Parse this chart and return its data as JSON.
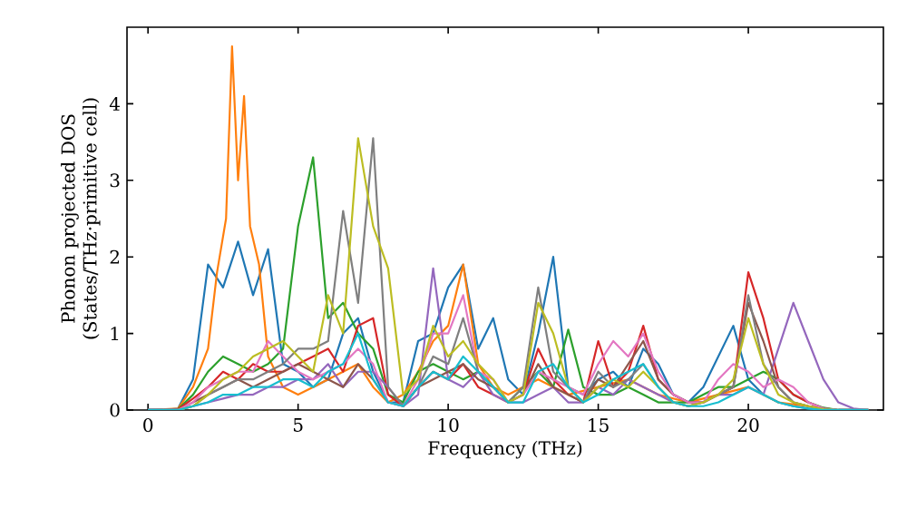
{
  "chart_data": {
    "type": "line",
    "xlabel": "Frequency (THz)",
    "ylabel": "Phonon projected DOS (States/THz·primitive cell)",
    "xlim": [
      -0.7,
      24.5
    ],
    "ylim": [
      0,
      5
    ],
    "xticks": [
      0,
      5,
      10,
      15,
      20
    ],
    "yticks": [
      0,
      1,
      2,
      3,
      4
    ],
    "line_style": "solid",
    "x": [
      0,
      0.5,
      1,
      1.5,
      2,
      2.5,
      3,
      3.5,
      4,
      4.5,
      5,
      5.5,
      6,
      6.5,
      7,
      7.5,
      8,
      8.5,
      9,
      9.5,
      10,
      10.5,
      11,
      11.5,
      12,
      12.5,
      13,
      13.5,
      14,
      14.5,
      15,
      15.5,
      16,
      16.5,
      17,
      17.5,
      18,
      18.5,
      19,
      19.5,
      20,
      20.5,
      21,
      21.5,
      22,
      22.5,
      23,
      23.5,
      24
    ],
    "series": [
      {
        "color": "#1f77b4",
        "values": [
          0,
          0,
          0.02,
          0.4,
          1.9,
          1.6,
          2.2,
          1.5,
          2.1,
          0.6,
          0.5,
          0.3,
          0.4,
          1.0,
          1.2,
          0.5,
          0.1,
          0.1,
          0.9,
          1.0,
          1.6,
          1.9,
          0.8,
          1.2,
          0.4,
          0.2,
          1.0,
          2.0,
          0.3,
          0.2,
          0.4,
          0.5,
          0.3,
          0.8,
          0.6,
          0.2,
          0.1,
          0.3,
          0.7,
          1.1,
          0.4,
          0.2,
          0.1,
          0.05,
          0.02,
          0,
          null,
          null,
          null
        ]
      },
      {
        "color": "#ff7f0e",
        "x": [
          0,
          1,
          1.5,
          2,
          2.3,
          2.6,
          2.8,
          3.0,
          3.2,
          3.4,
          3.7,
          4,
          4.5,
          5,
          5.5,
          6,
          6.5,
          7,
          7.5,
          8,
          8.5,
          9,
          9.5,
          10,
          10.5,
          11,
          11.5,
          12,
          13,
          14,
          15,
          16,
          17,
          18,
          19,
          20,
          20.5,
          21,
          22,
          23,
          24
        ],
        "values": [
          0,
          0.02,
          0.3,
          0.8,
          1.8,
          2.5,
          4.75,
          3.0,
          4.1,
          2.4,
          1.9,
          0.7,
          0.3,
          0.2,
          0.3,
          0.4,
          0.5,
          0.6,
          0.3,
          0.1,
          0.2,
          0.5,
          0.9,
          1.1,
          1.9,
          0.6,
          0.3,
          0.2,
          0.4,
          0.2,
          0.3,
          0.4,
          0.2,
          0.1,
          0.2,
          0.3,
          0.2,
          0.1,
          0.05,
          0,
          0
        ]
      },
      {
        "color": "#2ca02c",
        "values": [
          0,
          0,
          0.01,
          0.2,
          0.5,
          0.7,
          0.6,
          0.5,
          0.6,
          0.8,
          2.4,
          3.3,
          1.2,
          1.4,
          1.0,
          0.8,
          0.2,
          0.1,
          0.5,
          0.6,
          0.5,
          0.4,
          0.5,
          0.3,
          0.1,
          0.3,
          0.5,
          0.3,
          1.05,
          0.3,
          0.2,
          0.2,
          0.3,
          0.2,
          0.1,
          0.1,
          0.1,
          0.2,
          0.3,
          0.3,
          0.4,
          0.5,
          0.4,
          0.2,
          0.1,
          0.03,
          0,
          0,
          0
        ]
      },
      {
        "color": "#d62728",
        "values": [
          0,
          0,
          0.01,
          0.15,
          0.3,
          0.5,
          0.4,
          0.6,
          0.5,
          0.5,
          0.6,
          0.7,
          0.8,
          0.5,
          1.1,
          1.2,
          0.2,
          0.05,
          0.3,
          0.5,
          0.4,
          0.6,
          0.3,
          0.2,
          0.1,
          0.2,
          0.8,
          0.4,
          0.2,
          0.1,
          0.9,
          0.3,
          0.5,
          1.1,
          0.4,
          0.2,
          0.1,
          0.1,
          0.2,
          0.3,
          1.8,
          1.2,
          0.4,
          0.2,
          0.1,
          0.02,
          0,
          null,
          null
        ]
      },
      {
        "color": "#9467bd",
        "values": [
          0,
          0,
          0,
          0.05,
          0.1,
          0.15,
          0.2,
          0.2,
          0.3,
          0.3,
          0.4,
          0.4,
          0.6,
          0.3,
          0.5,
          0.5,
          0.3,
          0.05,
          0.2,
          1.85,
          0.4,
          0.3,
          0.5,
          0.2,
          0.1,
          0.1,
          0.2,
          0.3,
          0.1,
          0.1,
          0.3,
          0.2,
          0.4,
          0.3,
          0.2,
          0.1,
          0.05,
          0.1,
          0.2,
          0.2,
          0.3,
          0.2,
          0.8,
          1.4,
          0.9,
          0.4,
          0.1,
          0.02,
          0
        ]
      },
      {
        "color": "#8c564b",
        "values": [
          0,
          0,
          0,
          0.1,
          0.2,
          0.3,
          0.4,
          0.3,
          0.4,
          0.5,
          0.6,
          0.5,
          0.4,
          0.3,
          0.6,
          0.4,
          0.1,
          0.05,
          0.3,
          0.4,
          0.5,
          0.6,
          0.4,
          0.3,
          0.1,
          0.2,
          0.6,
          0.3,
          0.2,
          0.1,
          0.4,
          0.3,
          0.6,
          0.9,
          0.4,
          0.2,
          0.1,
          0.1,
          0.2,
          0.3,
          1.4,
          0.9,
          0.3,
          0.1,
          0.05,
          0.01,
          0,
          0,
          0
        ]
      },
      {
        "color": "#e377c2",
        "values": [
          0,
          0,
          0,
          0.1,
          0.3,
          0.4,
          0.5,
          0.5,
          0.9,
          0.7,
          0.5,
          0.4,
          0.5,
          0.6,
          0.8,
          0.6,
          0.1,
          0.05,
          0.4,
          1.0,
          1.0,
          1.5,
          0.5,
          0.4,
          0.1,
          0.2,
          0.5,
          0.4,
          0.3,
          0.2,
          0.6,
          0.9,
          0.7,
          1.0,
          0.5,
          0.2,
          0.1,
          0.1,
          0.4,
          0.6,
          0.5,
          0.3,
          0.4,
          0.3,
          0.1,
          0.02,
          0,
          0,
          0
        ]
      },
      {
        "color": "#7f7f7f",
        "values": [
          0,
          0,
          0,
          0.05,
          0.2,
          0.3,
          0.4,
          0.4,
          0.5,
          0.6,
          0.8,
          0.8,
          0.9,
          2.6,
          1.4,
          3.55,
          0.3,
          0.05,
          0.3,
          0.7,
          0.6,
          1.2,
          0.5,
          0.3,
          0.1,
          0.3,
          1.6,
          0.5,
          0.3,
          0.1,
          0.5,
          0.3,
          0.4,
          0.6,
          0.3,
          0.1,
          0.05,
          0.1,
          0.2,
          0.3,
          1.5,
          0.6,
          0.3,
          0.1,
          0.05,
          0.01,
          0,
          0,
          0
        ]
      },
      {
        "color": "#bcbd22",
        "values": [
          null,
          null,
          0,
          0.05,
          0.2,
          0.4,
          0.5,
          0.7,
          0.8,
          0.9,
          0.7,
          0.5,
          1.5,
          1.0,
          3.55,
          2.4,
          1.85,
          0.2,
          0.4,
          1.1,
          0.7,
          0.9,
          0.6,
          0.4,
          0.1,
          0.2,
          1.4,
          1.0,
          0.3,
          0.1,
          0.3,
          0.4,
          0.3,
          0.5,
          0.3,
          0.1,
          0.05,
          0.1,
          0.2,
          0.4,
          1.2,
          0.6,
          0.2,
          0.1,
          0.05,
          0.01,
          0,
          null,
          null
        ]
      },
      {
        "color": "#17becf",
        "values": [
          0,
          0,
          0,
          0.05,
          0.1,
          0.2,
          0.2,
          0.3,
          0.3,
          0.4,
          0.4,
          0.3,
          0.5,
          0.6,
          1.0,
          0.4,
          0.1,
          0.05,
          0.3,
          0.5,
          0.4,
          0.7,
          0.5,
          0.3,
          0.1,
          0.1,
          0.5,
          0.6,
          0.3,
          0.1,
          0.2,
          0.4,
          0.5,
          0.6,
          0.3,
          0.1,
          0.05,
          0.05,
          0.1,
          0.2,
          0.3,
          0.2,
          0.1,
          0.05,
          0.02,
          0,
          0,
          0,
          0
        ]
      }
    ]
  }
}
